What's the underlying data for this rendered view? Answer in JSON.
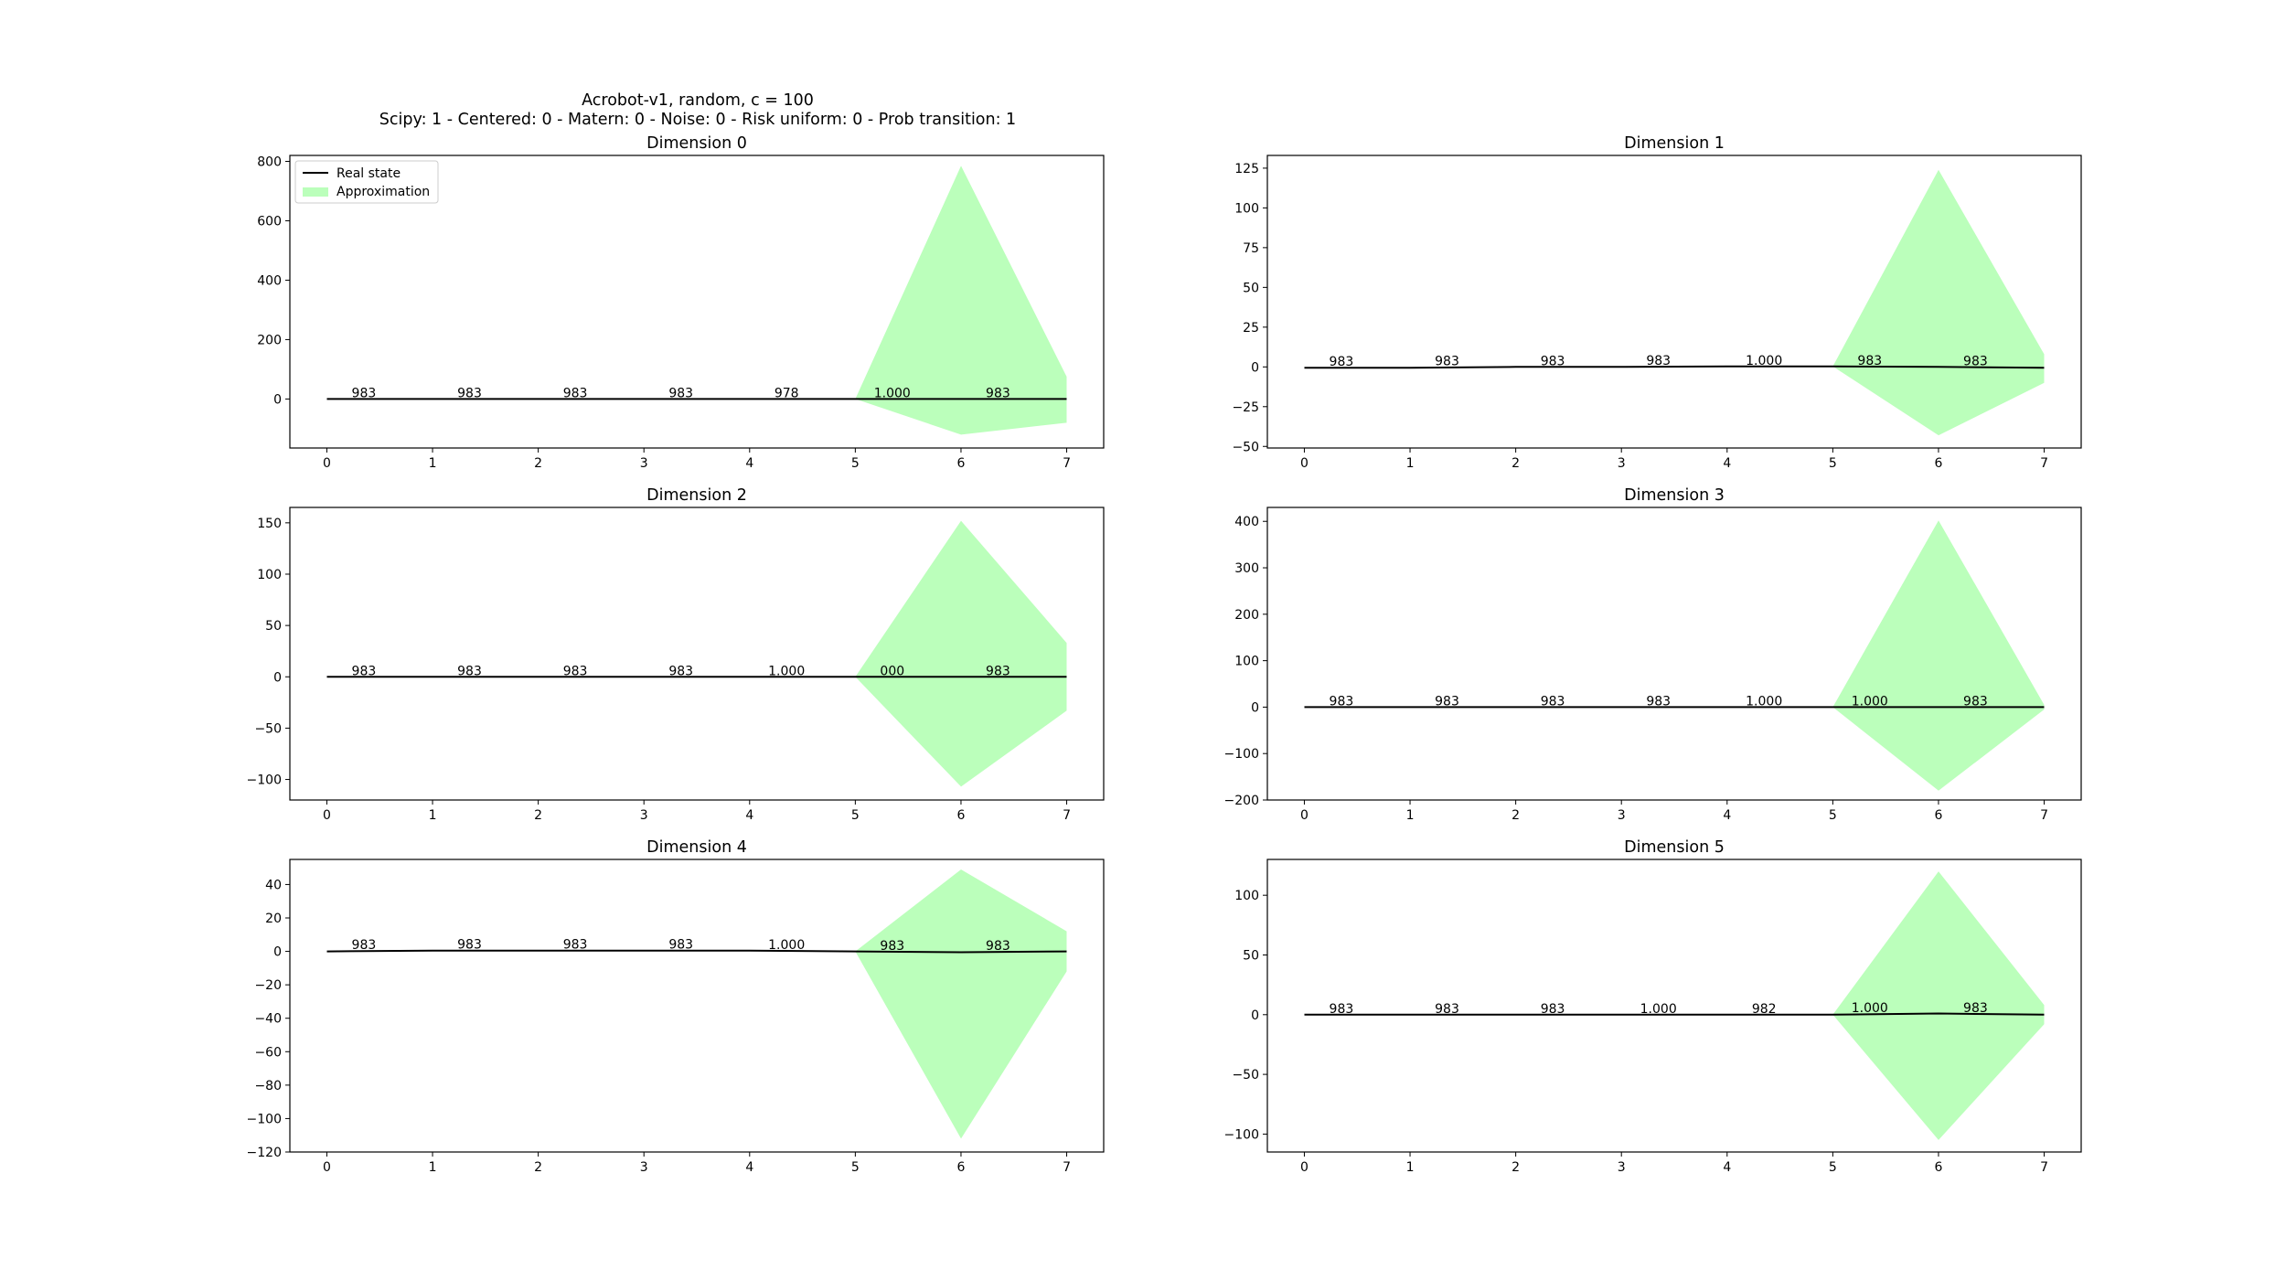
{
  "figure": {
    "title_line1": "Acrobot-v1, random, c = 100",
    "title_line2": "Scipy: 1 - Centered: 0 - Matern: 0 - Noise: 0 - Risk uniform: 0 - Prob transition: 1"
  },
  "legend": {
    "real_label": "Real state",
    "approx_label": "Approximation",
    "placement": "upper-left of Dimension 0"
  },
  "colors": {
    "real_line": "#000000",
    "approx_fill": "#bbffbb"
  },
  "chart_data": [
    {
      "type": "line",
      "title": "Dimension 0",
      "x": [
        0,
        1,
        2,
        3,
        4,
        5,
        6,
        7
      ],
      "xlim": [
        -0.35,
        7.35
      ],
      "ylim": [
        -165,
        820
      ],
      "yticks": [
        0,
        200,
        400,
        600,
        800
      ],
      "xticks": [
        0,
        1,
        2,
        3,
        4,
        5,
        6,
        7
      ],
      "series": [
        {
          "name": "Real state",
          "values": [
            0,
            0,
            0,
            0,
            0,
            0,
            0,
            0
          ]
        },
        {
          "name": "Approximation",
          "lower": [
            0,
            0,
            0,
            0,
            0,
            0,
            -120,
            -80
          ],
          "upper": [
            0,
            0,
            0,
            0,
            0,
            0,
            785,
            75
          ]
        }
      ],
      "annotations": [
        "983",
        "983",
        "983",
        "983",
        "978",
        "1.000",
        "983"
      ]
    },
    {
      "type": "line",
      "title": "Dimension 1",
      "x": [
        0,
        1,
        2,
        3,
        4,
        5,
        6,
        7
      ],
      "xlim": [
        -0.35,
        7.35
      ],
      "ylim": [
        -51,
        133
      ],
      "yticks": [
        -50,
        -25,
        0,
        25,
        50,
        75,
        100,
        125
      ],
      "xticks": [
        0,
        1,
        2,
        3,
        4,
        5,
        6,
        7
      ],
      "series": [
        {
          "name": "Real state",
          "values": [
            -0.5,
            -0.5,
            0,
            0,
            0.3,
            0.3,
            0,
            -0.5
          ]
        },
        {
          "name": "Approximation",
          "lower": [
            -0.5,
            -0.5,
            0,
            0,
            0.3,
            0.3,
            -43,
            -10
          ],
          "upper": [
            -0.5,
            -0.5,
            0,
            0,
            0.3,
            0.3,
            124,
            8
          ]
        }
      ],
      "annotations": [
        "983",
        "983",
        "983",
        "983",
        "1.000",
        "983",
        "983"
      ]
    },
    {
      "type": "line",
      "title": "Dimension 2",
      "x": [
        0,
        1,
        2,
        3,
        4,
        5,
        6,
        7
      ],
      "xlim": [
        -0.35,
        7.35
      ],
      "ylim": [
        -120,
        165
      ],
      "yticks": [
        -100,
        -50,
        0,
        50,
        100,
        150
      ],
      "xticks": [
        0,
        1,
        2,
        3,
        4,
        5,
        6,
        7
      ],
      "series": [
        {
          "name": "Real state",
          "values": [
            0,
            0,
            0,
            0,
            0,
            0,
            0,
            0
          ]
        },
        {
          "name": "Approximation",
          "lower": [
            0,
            0,
            0,
            0,
            0,
            0,
            -107,
            -33
          ],
          "upper": [
            0,
            0,
            0,
            0,
            0,
            0,
            152,
            33
          ]
        }
      ],
      "annotations": [
        "983",
        "983",
        "983",
        "983",
        "1.000",
        "000",
        "983"
      ]
    },
    {
      "type": "line",
      "title": "Dimension 3",
      "x": [
        0,
        1,
        2,
        3,
        4,
        5,
        6,
        7
      ],
      "xlim": [
        -0.35,
        7.35
      ],
      "ylim": [
        -200,
        430
      ],
      "yticks": [
        -200,
        -100,
        0,
        100,
        200,
        300,
        400
      ],
      "xticks": [
        0,
        1,
        2,
        3,
        4,
        5,
        6,
        7
      ],
      "series": [
        {
          "name": "Real state",
          "values": [
            0,
            0,
            0,
            0,
            0,
            0,
            0,
            0
          ]
        },
        {
          "name": "Approximation",
          "lower": [
            0,
            0,
            0,
            0,
            0,
            0,
            -180,
            -5
          ],
          "upper": [
            0,
            0,
            0,
            0,
            0,
            0,
            402,
            5
          ]
        }
      ],
      "annotations": [
        "983",
        "983",
        "983",
        "983",
        "1.000",
        "1.000",
        "983"
      ]
    },
    {
      "type": "line",
      "title": "Dimension 4",
      "x": [
        0,
        1,
        2,
        3,
        4,
        5,
        6,
        7
      ],
      "xlim": [
        -0.35,
        7.35
      ],
      "ylim": [
        -120,
        55
      ],
      "yticks": [
        -120,
        -100,
        -80,
        -60,
        -40,
        -20,
        0,
        20,
        40
      ],
      "xticks": [
        0,
        1,
        2,
        3,
        4,
        5,
        6,
        7
      ],
      "series": [
        {
          "name": "Real state",
          "values": [
            0,
            0.5,
            0.5,
            0.5,
            0.5,
            0,
            -0.5,
            0
          ]
        },
        {
          "name": "Approximation",
          "lower": [
            0,
            0.5,
            0.5,
            0.5,
            0.5,
            0,
            -112,
            -12
          ],
          "upper": [
            0,
            0.5,
            0.5,
            0.5,
            0.5,
            0,
            49,
            12
          ]
        }
      ],
      "annotations": [
        "983",
        "983",
        "983",
        "983",
        "1.000",
        "983",
        "983"
      ]
    },
    {
      "type": "line",
      "title": "Dimension 5",
      "x": [
        0,
        1,
        2,
        3,
        4,
        5,
        6,
        7
      ],
      "xlim": [
        -0.35,
        7.35
      ],
      "ylim": [
        -115,
        130
      ],
      "yticks": [
        -100,
        -50,
        0,
        50,
        100
      ],
      "xticks": [
        0,
        1,
        2,
        3,
        4,
        5,
        6,
        7
      ],
      "series": [
        {
          "name": "Real state",
          "values": [
            0,
            0,
            0,
            0,
            0,
            0,
            1,
            0
          ]
        },
        {
          "name": "Approximation",
          "lower": [
            0,
            0,
            0,
            0,
            0,
            0,
            -105,
            -8
          ],
          "upper": [
            0,
            0,
            0,
            0,
            0,
            0,
            120,
            8
          ]
        }
      ],
      "annotations": [
        "983",
        "983",
        "983",
        "1.000",
        "982",
        "1.000",
        "983"
      ]
    }
  ]
}
